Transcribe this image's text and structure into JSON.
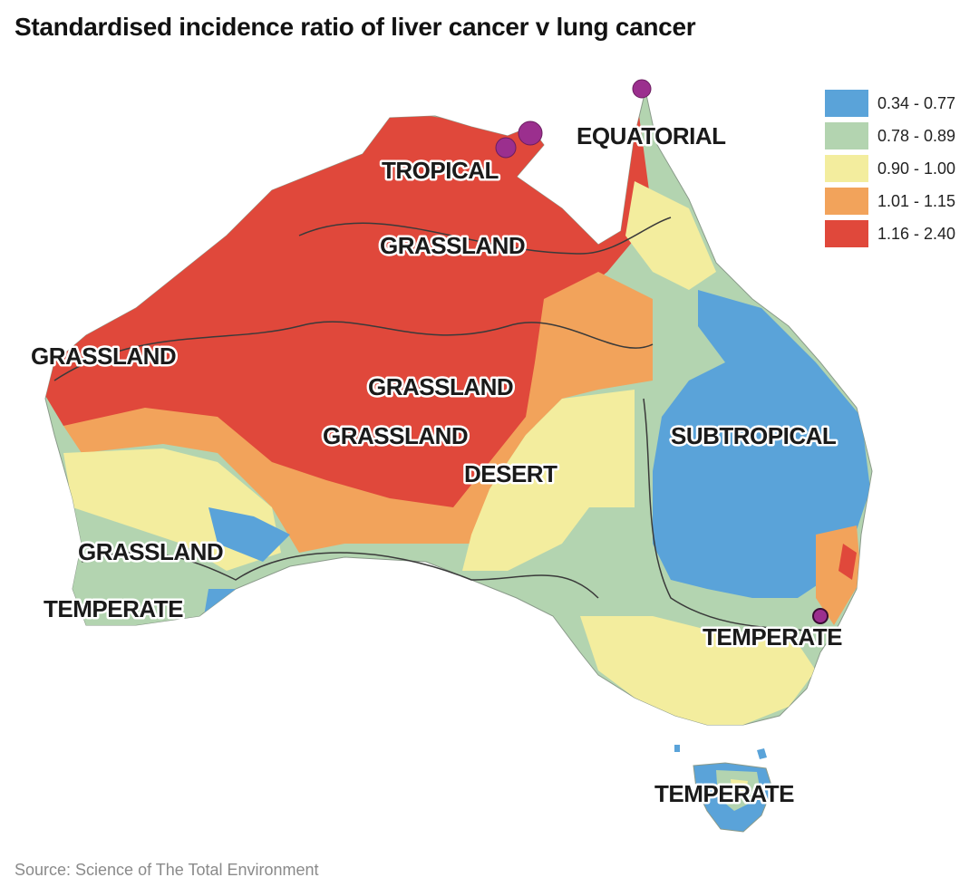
{
  "title": "Standardised incidence ratio of liver cancer v lung cancer",
  "legend": [
    {
      "label": "0.34 - 0.77",
      "color": "#5aa3d9"
    },
    {
      "label": "0.78 - 0.89",
      "color": "#b3d4b0"
    },
    {
      "label": "0.90 - 1.00",
      "color": "#f3ed9e"
    },
    {
      "label": "1.01 - 1.15",
      "color": "#f2a35b"
    },
    {
      "label": "1.16 - 2.40",
      "color": "#e0483b"
    }
  ],
  "zones": {
    "equatorial": "EQUATORIAL",
    "tropical": "TROPICAL",
    "grassland_north": "GRASSLAND",
    "grassland_west": "GRASSLAND",
    "grassland_center_upper": "GRASSLAND",
    "grassland_center_lower": "GRASSLAND",
    "desert": "DESERT",
    "subtropical": "SUBTROPICAL",
    "grassland_southwest": "GRASSLAND",
    "temperate_southwest": "TEMPERATE",
    "temperate_east": "TEMPERATE",
    "temperate_tasmania": "TEMPERATE"
  },
  "markers_color": "#9b2f8e",
  "source": "Source: Science of The Total Environment"
}
